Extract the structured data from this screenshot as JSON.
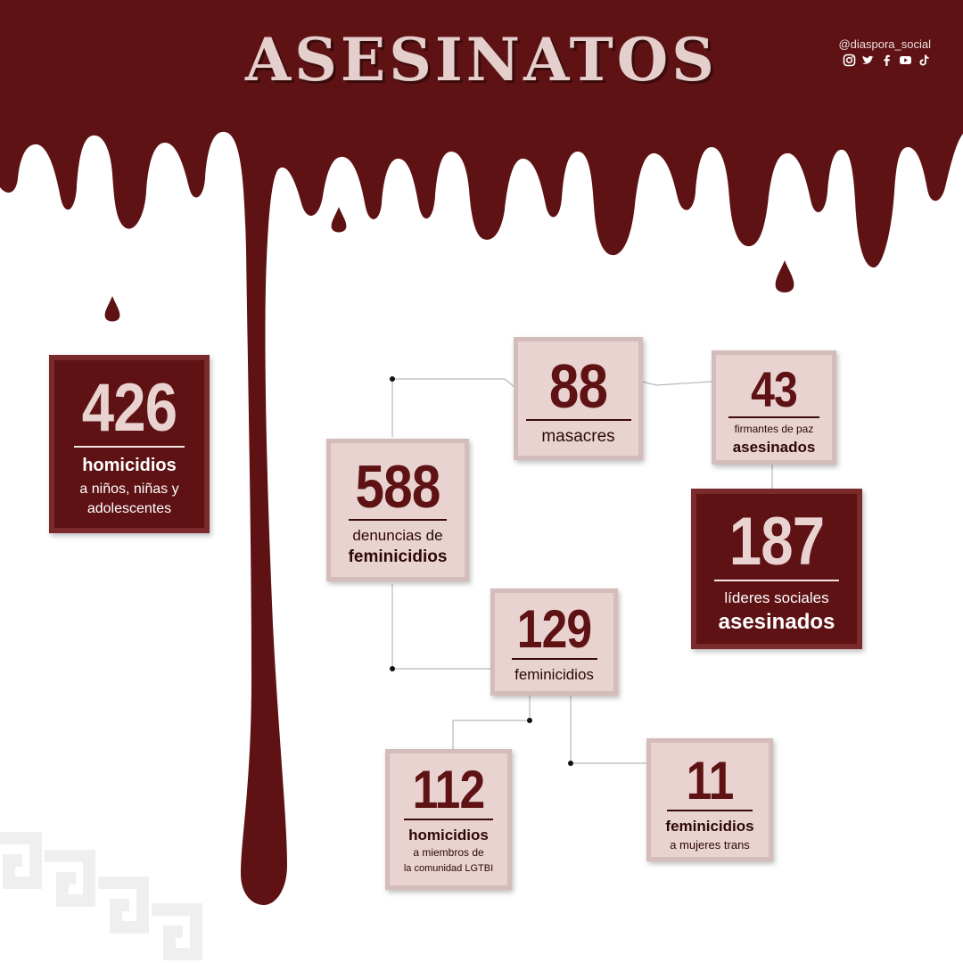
{
  "title": "ASESINATOS",
  "social": {
    "handle": "@diaspora_social",
    "icons": [
      "instagram-icon",
      "twitter-icon",
      "facebook-icon",
      "youtube-icon",
      "tiktok-icon"
    ]
  },
  "colors": {
    "blood": "#5e1214",
    "card_light": "#e9d3d1",
    "card_dark": "#5e1214",
    "title_fill": "#e4cfcd"
  },
  "stats": {
    "homicidios_ninos": {
      "value": "426",
      "label1": "homicidios",
      "label2": "a niños, niñas y",
      "label3": "adolescentes"
    },
    "masacres": {
      "value": "88",
      "label1": "masacres"
    },
    "firmantes": {
      "value": "43",
      "label1": "firmantes de paz",
      "label2": "asesinados"
    },
    "denuncias": {
      "value": "588",
      "label1": "denuncias de",
      "label2": "feminicidios"
    },
    "lideres": {
      "value": "187",
      "label1": "líderes sociales",
      "label2": "asesinados"
    },
    "feminicidios": {
      "value": "129",
      "label1": "feminicidios"
    },
    "lgtbi": {
      "value": "112",
      "label1": "homicidios",
      "label2": "a miembros de",
      "label3": "la comunidad LGTBI"
    },
    "trans": {
      "value": "11",
      "label1": "feminicidios",
      "label2": "a mujeres trans"
    }
  }
}
